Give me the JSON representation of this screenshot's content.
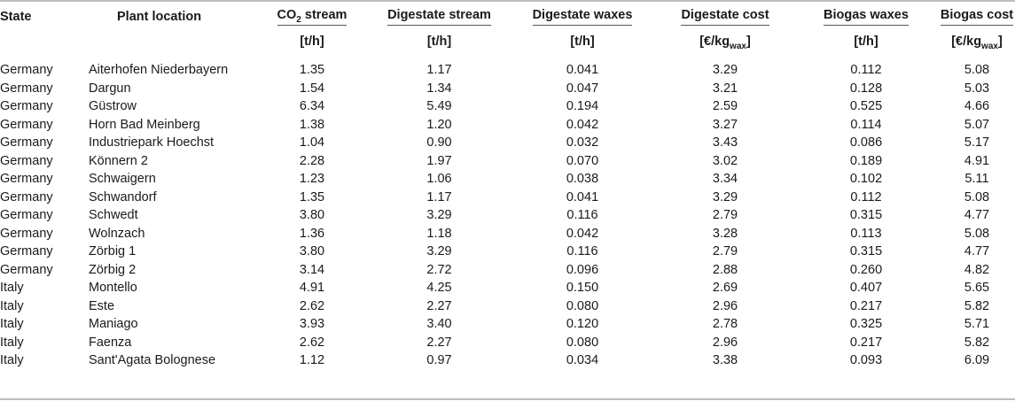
{
  "table": {
    "headers": [
      {
        "key": "state",
        "label": "State",
        "unit": "",
        "unit_sub": "",
        "unit_tail": ""
      },
      {
        "key": "location",
        "label": "Plant location",
        "unit": "",
        "unit_sub": "",
        "unit_tail": ""
      },
      {
        "key": "co2",
        "label_main": "CO",
        "label_sub": "2",
        "label_tail": " stream",
        "unit": "[t/h]",
        "unit_sub": "",
        "unit_tail": ""
      },
      {
        "key": "dig_stream",
        "label": "Digestate stream",
        "unit": "[t/h]",
        "unit_sub": "",
        "unit_tail": ""
      },
      {
        "key": "dig_waxes",
        "label": "Digestate waxes",
        "unit": "[t/h]",
        "unit_sub": "",
        "unit_tail": ""
      },
      {
        "key": "dig_cost",
        "label": "Digestate cost",
        "unit": "[€/kg",
        "unit_sub": "wax",
        "unit_tail": "]"
      },
      {
        "key": "bio_waxes",
        "label": "Biogas waxes",
        "unit": "[t/h]",
        "unit_sub": "",
        "unit_tail": ""
      },
      {
        "key": "bio_cost",
        "label": "Biogas cost",
        "unit": "[€/kg",
        "unit_sub": "wax",
        "unit_tail": "]"
      }
    ],
    "rows": [
      [
        "Germany",
        "Aiterhofen Niederbayern",
        "1.35",
        "1.17",
        "0.041",
        "3.29",
        "0.112",
        "5.08"
      ],
      [
        "Germany",
        "Dargun",
        "1.54",
        "1.34",
        "0.047",
        "3.21",
        "0.128",
        "5.03"
      ],
      [
        "Germany",
        "Güstrow",
        "6.34",
        "5.49",
        "0.194",
        "2.59",
        "0.525",
        "4.66"
      ],
      [
        "Germany",
        "Horn Bad Meinberg",
        "1.38",
        "1.20",
        "0.042",
        "3.27",
        "0.114",
        "5.07"
      ],
      [
        "Germany",
        "Industriepark Hoechst",
        "1.04",
        "0.90",
        "0.032",
        "3.43",
        "0.086",
        "5.17"
      ],
      [
        "Germany",
        "Könnern 2",
        "2.28",
        "1.97",
        "0.070",
        "3.02",
        "0.189",
        "4.91"
      ],
      [
        "Germany",
        "Schwaigern",
        "1.23",
        "1.06",
        "0.038",
        "3.34",
        "0.102",
        "5.11"
      ],
      [
        "Germany",
        "Schwandorf",
        "1.35",
        "1.17",
        "0.041",
        "3.29",
        "0.112",
        "5.08"
      ],
      [
        "Germany",
        "Schwedt",
        "3.80",
        "3.29",
        "0.116",
        "2.79",
        "0.315",
        "4.77"
      ],
      [
        "Germany",
        "Wolnzach",
        "1.36",
        "1.18",
        "0.042",
        "3.28",
        "0.113",
        "5.08"
      ],
      [
        "Germany",
        "Zörbig 1",
        "3.80",
        "3.29",
        "0.116",
        "2.79",
        "0.315",
        "4.77"
      ],
      [
        "Germany",
        "Zörbig 2",
        "3.14",
        "2.72",
        "0.096",
        "2.88",
        "0.260",
        "4.82"
      ],
      [
        "Italy",
        "Montello",
        "4.91",
        "4.25",
        "0.150",
        "2.69",
        "0.407",
        "5.65"
      ],
      [
        "Italy",
        "Este",
        "2.62",
        "2.27",
        "0.080",
        "2.96",
        "0.217",
        "5.82"
      ],
      [
        "Italy",
        "Maniago",
        "3.93",
        "3.40",
        "0.120",
        "2.78",
        "0.325",
        "5.71"
      ],
      [
        "Italy",
        "Faenza",
        "2.62",
        "2.27",
        "0.080",
        "2.96",
        "0.217",
        "5.82"
      ],
      [
        "Italy",
        "Sant'Agata Bolognese",
        "1.12",
        "0.97",
        "0.034",
        "3.38",
        "0.093",
        "6.09"
      ]
    ]
  }
}
